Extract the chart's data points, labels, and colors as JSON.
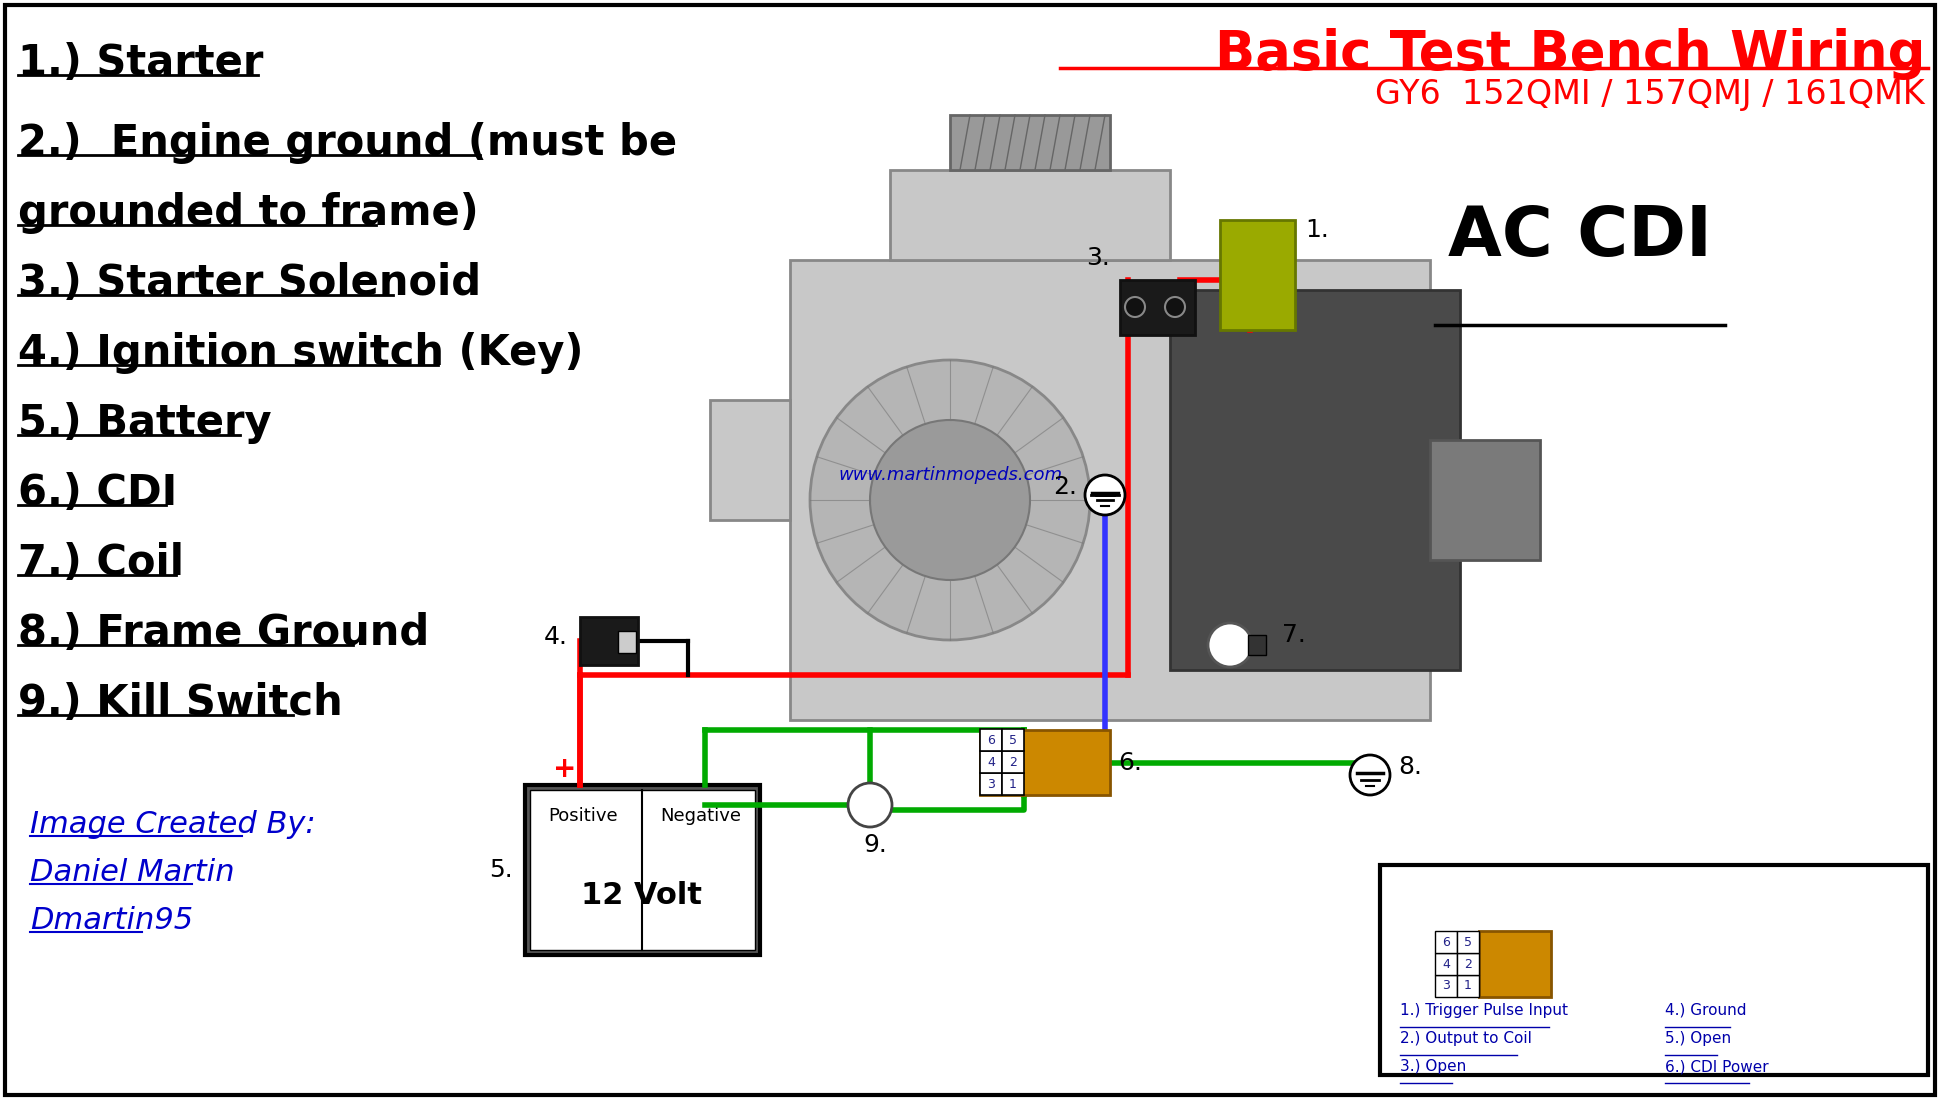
{
  "title": "Basic Test Bench Wiring",
  "subtitle": "GY6  152QMI / 157QMJ / 161QMK",
  "website": "www.martinmopeds.com",
  "bg_color": "#ffffff",
  "border_color": "#000000",
  "list_items": [
    "1.) Starter",
    "2.)  Engine ground (must be",
    "grounded to frame)",
    "3.) Starter Solenoid",
    "4.) Ignition switch (Key)",
    "5.) Battery",
    "6.) CDI",
    "7.) Coil",
    "8.) Frame Ground",
    "9.) Kill Switch"
  ],
  "credit_lines": [
    "Image Created By:",
    "Daniel Martin",
    "Dmartin95"
  ],
  "ac_cdi_label": "AC CDI",
  "cdi_legend_items_left": [
    "1.) Trigger Pulse Input",
    "2.) Output to Coil",
    "3.) Open"
  ],
  "cdi_legend_items_right": [
    "4.) Ground",
    "5.) Open",
    "6.) CDI Power"
  ]
}
